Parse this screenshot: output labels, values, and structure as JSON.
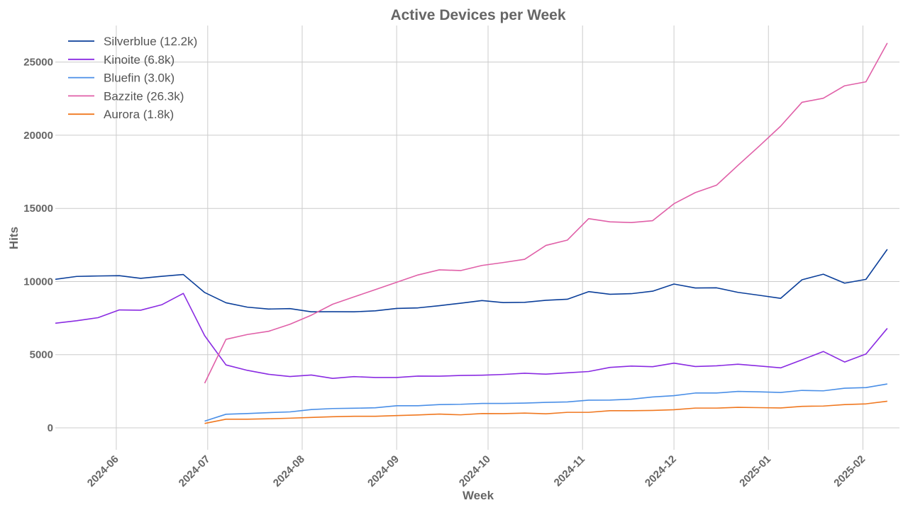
{
  "chart_data": {
    "type": "line",
    "title": "Active Devices per Week",
    "xlabel": "Week",
    "ylabel": "Hits",
    "ylim": [
      -1500,
      27500
    ],
    "xlim": [
      "2024-05-12",
      "2025-02-13"
    ],
    "grid": true,
    "legend_position": "top-left",
    "y_ticks": [
      0,
      5000,
      10000,
      15000,
      20000,
      25000
    ],
    "x_ticks": [
      "2024-06",
      "2024-07",
      "2024-08",
      "2024-09",
      "2024-10",
      "2024-11",
      "2024-12",
      "2025-01",
      "2025-02"
    ],
    "x": [
      "2024-05-12",
      "2024-05-19",
      "2024-05-26",
      "2024-06-02",
      "2024-06-09",
      "2024-06-16",
      "2024-06-23",
      "2024-06-30",
      "2024-07-07",
      "2024-07-14",
      "2024-07-21",
      "2024-07-28",
      "2024-08-04",
      "2024-08-11",
      "2024-08-18",
      "2024-08-25",
      "2024-09-01",
      "2024-09-08",
      "2024-09-15",
      "2024-09-22",
      "2024-09-29",
      "2024-10-06",
      "2024-10-13",
      "2024-10-20",
      "2024-10-27",
      "2024-11-03",
      "2024-11-10",
      "2024-11-17",
      "2024-11-24",
      "2024-12-01",
      "2024-12-08",
      "2024-12-15",
      "2024-12-22",
      "2024-12-29",
      "2025-01-05",
      "2025-01-12",
      "2025-01-19",
      "2025-01-26",
      "2025-02-02",
      "2025-02-09"
    ],
    "series": [
      {
        "name": "Silverblue (12.2k)",
        "color": "#0b3f9a",
        "values": [
          10150,
          10350,
          10380,
          10400,
          10220,
          10360,
          10480,
          9250,
          8550,
          8250,
          8120,
          8150,
          7930,
          7940,
          7930,
          8000,
          8160,
          8200,
          8350,
          8520,
          8700,
          8560,
          8580,
          8720,
          8790,
          9310,
          9130,
          9170,
          9340,
          9830,
          9560,
          9570,
          9260,
          9060,
          8850,
          10120,
          10500,
          9890,
          10150,
          12200
        ]
      },
      {
        "name": "Kinoite (6.8k)",
        "color": "#8a2be2",
        "values": [
          7150,
          7320,
          7530,
          8060,
          8040,
          8420,
          9190,
          6300,
          4300,
          3930,
          3660,
          3510,
          3610,
          3380,
          3500,
          3440,
          3440,
          3540,
          3530,
          3580,
          3600,
          3650,
          3730,
          3670,
          3760,
          3850,
          4130,
          4220,
          4180,
          4420,
          4190,
          4240,
          4350,
          4230,
          4100,
          4650,
          5220,
          4500,
          5050,
          6800
        ]
      },
      {
        "name": "Bluefin (3.0k)",
        "color": "#4a8fe7",
        "values": [
          null,
          null,
          null,
          null,
          null,
          null,
          null,
          460,
          930,
          980,
          1040,
          1090,
          1250,
          1320,
          1340,
          1370,
          1510,
          1510,
          1590,
          1610,
          1670,
          1670,
          1690,
          1740,
          1770,
          1890,
          1900,
          1960,
          2110,
          2200,
          2380,
          2380,
          2490,
          2460,
          2420,
          2560,
          2530,
          2710,
          2750,
          3000
        ]
      },
      {
        "name": "Bazzite (26.3k)",
        "color": "#e060a8",
        "values": [
          null,
          null,
          null,
          null,
          null,
          null,
          null,
          3050,
          6050,
          6380,
          6600,
          7080,
          7700,
          8450,
          8950,
          9450,
          9950,
          10450,
          10800,
          10750,
          11100,
          11300,
          11520,
          12470,
          12830,
          14300,
          14080,
          14030,
          14160,
          15320,
          16080,
          16590,
          17940,
          19260,
          20620,
          22250,
          22530,
          23380,
          23650,
          26300
        ]
      },
      {
        "name": "Aurora (1.8k)",
        "color": "#f07820",
        "values": [
          null,
          null,
          null,
          null,
          null,
          null,
          null,
          300,
          590,
          590,
          620,
          660,
          710,
          760,
          790,
          790,
          840,
          880,
          940,
          890,
          980,
          970,
          1010,
          960,
          1060,
          1060,
          1170,
          1170,
          1190,
          1240,
          1350,
          1350,
          1400,
          1380,
          1360,
          1470,
          1490,
          1590,
          1640,
          1820
        ]
      }
    ]
  }
}
